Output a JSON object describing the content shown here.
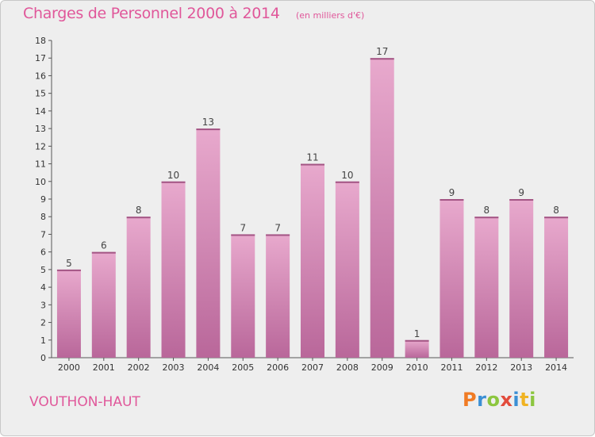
{
  "brand": {
    "logo_text": "Proxiti",
    "logo_letters": [
      {
        "ch": "P",
        "color": "#f07b24"
      },
      {
        "ch": "r",
        "color": "#3b8fd4"
      },
      {
        "ch": "o",
        "color": "#8cc63f"
      },
      {
        "ch": "x",
        "color": "#e24b3c"
      },
      {
        "ch": "i",
        "color": "#3b8fd4"
      },
      {
        "ch": "t",
        "color": "#f0b323"
      },
      {
        "ch": "i",
        "color": "#8cc63f"
      }
    ]
  },
  "chart_data": {
    "type": "bar",
    "title": "Charges de Personnel 2000 à 2014",
    "subtitle": "(en milliers d'€)",
    "location": "VOUTHON-HAUT",
    "categories": [
      "2000",
      "2001",
      "2002",
      "2003",
      "2004",
      "2005",
      "2006",
      "2007",
      "2008",
      "2009",
      "2010",
      "2011",
      "2012",
      "2013",
      "2014"
    ],
    "values": [
      5,
      6,
      8,
      10,
      13,
      7,
      7,
      11,
      10,
      17,
      1,
      9,
      8,
      9,
      8
    ],
    "ylim": [
      0,
      18
    ],
    "yticks": [
      0,
      1,
      2,
      3,
      4,
      5,
      6,
      7,
      8,
      9,
      10,
      11,
      12,
      13,
      14,
      15,
      16,
      17,
      18
    ],
    "grid": false,
    "bar_color": "#d98fb8",
    "text_color": "#e0579a"
  }
}
